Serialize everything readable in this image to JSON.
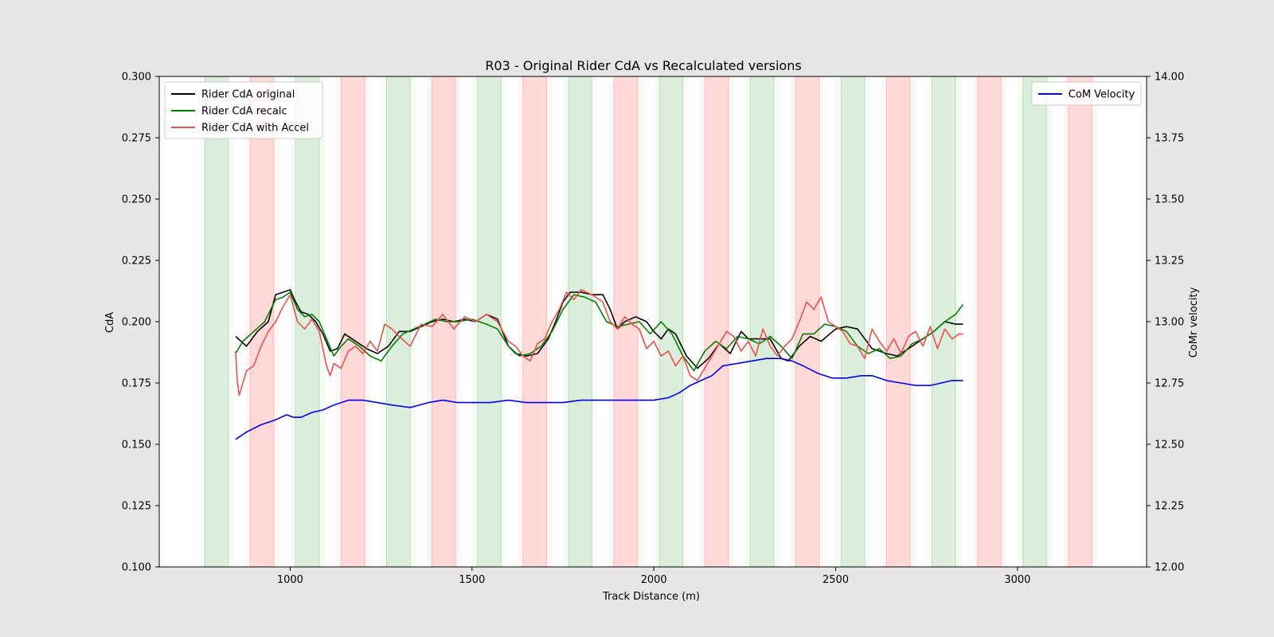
{
  "chart_data": {
    "type": "line",
    "title": "R03 -  Original Rider CdA vs Recalculated versions",
    "xlabel": "Track Distance (m)",
    "ylabel": "CdA",
    "y2label": "CoMr velocity",
    "xlim": [
      640,
      3355
    ],
    "ylim": [
      0.1,
      0.3
    ],
    "y2lim": [
      12.0,
      14.0
    ],
    "xticks": [
      "1000",
      "1500",
      "2000",
      "2500",
      "3000"
    ],
    "yticks": [
      "0.100",
      "0.125",
      "0.150",
      "0.175",
      "0.200",
      "0.225",
      "0.250",
      "0.275",
      "0.300"
    ],
    "y2ticks": [
      "12.00",
      "12.25",
      "12.50",
      "12.75",
      "13.00",
      "13.25",
      "13.50",
      "13.75",
      "14.00"
    ],
    "grid": false,
    "legend_left_position": "upper-left",
    "legend_right_position": "upper-right",
    "shaded_bands": [
      {
        "x0": 765,
        "x1": 830,
        "color": "green"
      },
      {
        "x0": 890,
        "x1": 955,
        "color": "red"
      },
      {
        "x0": 1015,
        "x1": 1080,
        "color": "green"
      },
      {
        "x0": 1140,
        "x1": 1205,
        "color": "red"
      },
      {
        "x0": 1265,
        "x1": 1330,
        "color": "green"
      },
      {
        "x0": 1390,
        "x1": 1455,
        "color": "red"
      },
      {
        "x0": 1515,
        "x1": 1580,
        "color": "green"
      },
      {
        "x0": 1640,
        "x1": 1705,
        "color": "red"
      },
      {
        "x0": 1765,
        "x1": 1830,
        "color": "green"
      },
      {
        "x0": 1890,
        "x1": 1955,
        "color": "red"
      },
      {
        "x0": 2015,
        "x1": 2080,
        "color": "green"
      },
      {
        "x0": 2140,
        "x1": 2205,
        "color": "red"
      },
      {
        "x0": 2265,
        "x1": 2330,
        "color": "green"
      },
      {
        "x0": 2390,
        "x1": 2455,
        "color": "red"
      },
      {
        "x0": 2515,
        "x1": 2580,
        "color": "green"
      },
      {
        "x0": 2640,
        "x1": 2705,
        "color": "red"
      },
      {
        "x0": 2765,
        "x1": 2830,
        "color": "green"
      },
      {
        "x0": 2890,
        "x1": 2955,
        "color": "red"
      },
      {
        "x0": 3015,
        "x1": 3080,
        "color": "green"
      },
      {
        "x0": 3140,
        "x1": 3205,
        "color": "red"
      }
    ],
    "series": [
      {
        "name": "Rider CdA original",
        "color": "#000000",
        "axis": "left",
        "x": [
          850,
          880,
          910,
          940,
          960,
          980,
          1000,
          1015,
          1030,
          1050,
          1070,
          1090,
          1110,
          1130,
          1150,
          1180,
          1210,
          1240,
          1270,
          1300,
          1330,
          1360,
          1390,
          1420,
          1450,
          1480,
          1510,
          1540,
          1570,
          1600,
          1620,
          1650,
          1680,
          1710,
          1730,
          1750,
          1770,
          1800,
          1830,
          1860,
          1880,
          1900,
          1920,
          1950,
          1980,
          2000,
          2020,
          2040,
          2060,
          2090,
          2120,
          2150,
          2180,
          2210,
          2240,
          2260,
          2290,
          2320,
          2350,
          2370,
          2400,
          2430,
          2460,
          2500,
          2530,
          2560,
          2600,
          2640,
          2670,
          2700,
          2740,
          2770,
          2800,
          2830,
          2850
        ],
        "y": [
          0.194,
          0.19,
          0.196,
          0.2,
          0.211,
          0.212,
          0.213,
          0.208,
          0.204,
          0.203,
          0.2,
          0.195,
          0.188,
          0.189,
          0.195,
          0.192,
          0.189,
          0.187,
          0.19,
          0.196,
          0.196,
          0.198,
          0.2,
          0.201,
          0.2,
          0.201,
          0.2,
          0.203,
          0.201,
          0.19,
          0.187,
          0.186,
          0.187,
          0.193,
          0.2,
          0.208,
          0.212,
          0.212,
          0.211,
          0.211,
          0.205,
          0.197,
          0.2,
          0.202,
          0.2,
          0.196,
          0.193,
          0.197,
          0.195,
          0.186,
          0.181,
          0.185,
          0.191,
          0.187,
          0.196,
          0.193,
          0.193,
          0.193,
          0.185,
          0.184,
          0.19,
          0.194,
          0.192,
          0.197,
          0.198,
          0.197,
          0.189,
          0.187,
          0.186,
          0.189,
          0.193,
          0.196,
          0.2,
          0.199,
          0.199
        ]
      },
      {
        "name": "Rider CdA recalc",
        "color": "#008000",
        "axis": "left",
        "x": [
          850,
          870,
          900,
          930,
          960,
          980,
          1000,
          1020,
          1040,
          1060,
          1080,
          1100,
          1120,
          1140,
          1160,
          1190,
          1220,
          1250,
          1280,
          1310,
          1340,
          1370,
          1400,
          1430,
          1460,
          1500,
          1540,
          1570,
          1600,
          1630,
          1660,
          1690,
          1720,
          1750,
          1780,
          1810,
          1840,
          1870,
          1900,
          1930,
          1960,
          1990,
          2020,
          2050,
          2080,
          2110,
          2140,
          2170,
          2200,
          2230,
          2260,
          2290,
          2320,
          2350,
          2380,
          2410,
          2440,
          2470,
          2500,
          2530,
          2560,
          2590,
          2620,
          2650,
          2680,
          2710,
          2740,
          2770,
          2800,
          2830,
          2850
        ],
        "y": [
          0.187,
          0.192,
          0.196,
          0.2,
          0.209,
          0.21,
          0.212,
          0.205,
          0.202,
          0.203,
          0.2,
          0.193,
          0.186,
          0.19,
          0.193,
          0.19,
          0.186,
          0.184,
          0.19,
          0.195,
          0.197,
          0.199,
          0.201,
          0.2,
          0.2,
          0.201,
          0.199,
          0.197,
          0.19,
          0.186,
          0.187,
          0.19,
          0.196,
          0.205,
          0.211,
          0.21,
          0.208,
          0.2,
          0.198,
          0.199,
          0.2,
          0.195,
          0.2,
          0.195,
          0.186,
          0.18,
          0.188,
          0.192,
          0.189,
          0.194,
          0.193,
          0.191,
          0.194,
          0.19,
          0.185,
          0.195,
          0.195,
          0.199,
          0.198,
          0.196,
          0.19,
          0.187,
          0.189,
          0.185,
          0.186,
          0.191,
          0.193,
          0.196,
          0.2,
          0.203,
          0.207
        ]
      },
      {
        "name": "Rider CdA with Accel",
        "color": "#f0504c",
        "axis": "left",
        "x": [
          850,
          855,
          860,
          870,
          880,
          900,
          920,
          940,
          960,
          980,
          1000,
          1020,
          1040,
          1060,
          1080,
          1100,
          1110,
          1120,
          1140,
          1160,
          1180,
          1200,
          1220,
          1240,
          1260,
          1280,
          1300,
          1330,
          1360,
          1390,
          1420,
          1450,
          1480,
          1510,
          1540,
          1570,
          1600,
          1620,
          1640,
          1660,
          1680,
          1700,
          1720,
          1740,
          1760,
          1780,
          1800,
          1830,
          1860,
          1880,
          1900,
          1920,
          1940,
          1960,
          1980,
          2000,
          2020,
          2040,
          2060,
          2080,
          2100,
          2120,
          2140,
          2160,
          2180,
          2200,
          2220,
          2240,
          2260,
          2280,
          2300,
          2320,
          2340,
          2360,
          2380,
          2400,
          2420,
          2440,
          2460,
          2480,
          2500,
          2520,
          2540,
          2560,
          2580,
          2600,
          2620,
          2640,
          2660,
          2680,
          2700,
          2720,
          2740,
          2760,
          2780,
          2800,
          2820,
          2840,
          2850
        ],
        "y": [
          0.188,
          0.175,
          0.17,
          0.175,
          0.18,
          0.182,
          0.19,
          0.196,
          0.2,
          0.206,
          0.211,
          0.2,
          0.197,
          0.201,
          0.196,
          0.182,
          0.178,
          0.183,
          0.181,
          0.188,
          0.19,
          0.187,
          0.192,
          0.188,
          0.199,
          0.197,
          0.194,
          0.19,
          0.199,
          0.198,
          0.203,
          0.197,
          0.202,
          0.2,
          0.203,
          0.2,
          0.192,
          0.19,
          0.186,
          0.184,
          0.191,
          0.193,
          0.2,
          0.205,
          0.212,
          0.209,
          0.213,
          0.211,
          0.208,
          0.2,
          0.197,
          0.202,
          0.199,
          0.197,
          0.189,
          0.192,
          0.186,
          0.188,
          0.182,
          0.186,
          0.178,
          0.176,
          0.181,
          0.186,
          0.191,
          0.196,
          0.194,
          0.188,
          0.192,
          0.186,
          0.197,
          0.19,
          0.186,
          0.19,
          0.193,
          0.2,
          0.208,
          0.205,
          0.21,
          0.2,
          0.198,
          0.196,
          0.191,
          0.19,
          0.185,
          0.197,
          0.192,
          0.188,
          0.193,
          0.187,
          0.194,
          0.196,
          0.19,
          0.198,
          0.189,
          0.197,
          0.193,
          0.195,
          0.195
        ]
      },
      {
        "name": "CoM Velocity",
        "color": "#0000ff",
        "axis": "right",
        "x": [
          850,
          880,
          920,
          960,
          990,
          1010,
          1030,
          1060,
          1090,
          1120,
          1160,
          1200,
          1240,
          1280,
          1330,
          1380,
          1420,
          1460,
          1500,
          1550,
          1600,
          1650,
          1700,
          1750,
          1800,
          1850,
          1900,
          1950,
          2000,
          2040,
          2070,
          2100,
          2130,
          2160,
          2190,
          2230,
          2270,
          2310,
          2350,
          2380,
          2410,
          2450,
          2490,
          2530,
          2570,
          2600,
          2640,
          2680,
          2720,
          2760,
          2790,
          2820,
          2850
        ],
        "y": [
          12.52,
          12.55,
          12.58,
          12.6,
          12.62,
          12.61,
          12.61,
          12.63,
          12.64,
          12.66,
          12.68,
          12.68,
          12.67,
          12.66,
          12.65,
          12.67,
          12.68,
          12.67,
          12.67,
          12.67,
          12.68,
          12.67,
          12.67,
          12.67,
          12.68,
          12.68,
          12.68,
          12.68,
          12.68,
          12.69,
          12.71,
          12.74,
          12.76,
          12.78,
          12.82,
          12.83,
          12.84,
          12.85,
          12.85,
          12.84,
          12.82,
          12.79,
          12.77,
          12.77,
          12.78,
          12.78,
          12.76,
          12.75,
          12.74,
          12.74,
          12.75,
          12.76,
          12.76
        ]
      }
    ]
  }
}
